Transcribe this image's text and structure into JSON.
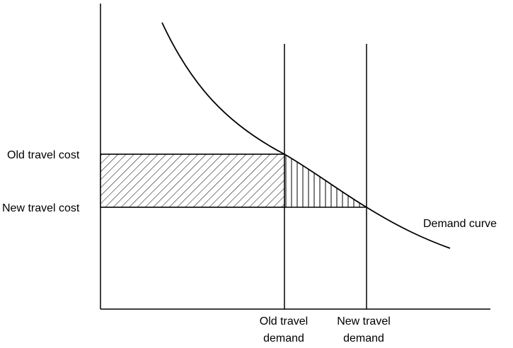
{
  "labels": {
    "old_cost": "Old travel cost",
    "new_cost": "New travel cost",
    "curve": "Demand curve",
    "old_demand_line1": "Old travel",
    "old_demand_line2": "demand",
    "new_demand_line1": "New travel",
    "new_demand_line2": "demand"
  },
  "colors": {
    "ink": "#000000",
    "background": "#ffffff"
  },
  "shading": {
    "rectangle": "diagonal hatching",
    "triangle": "vertical hatching"
  }
}
